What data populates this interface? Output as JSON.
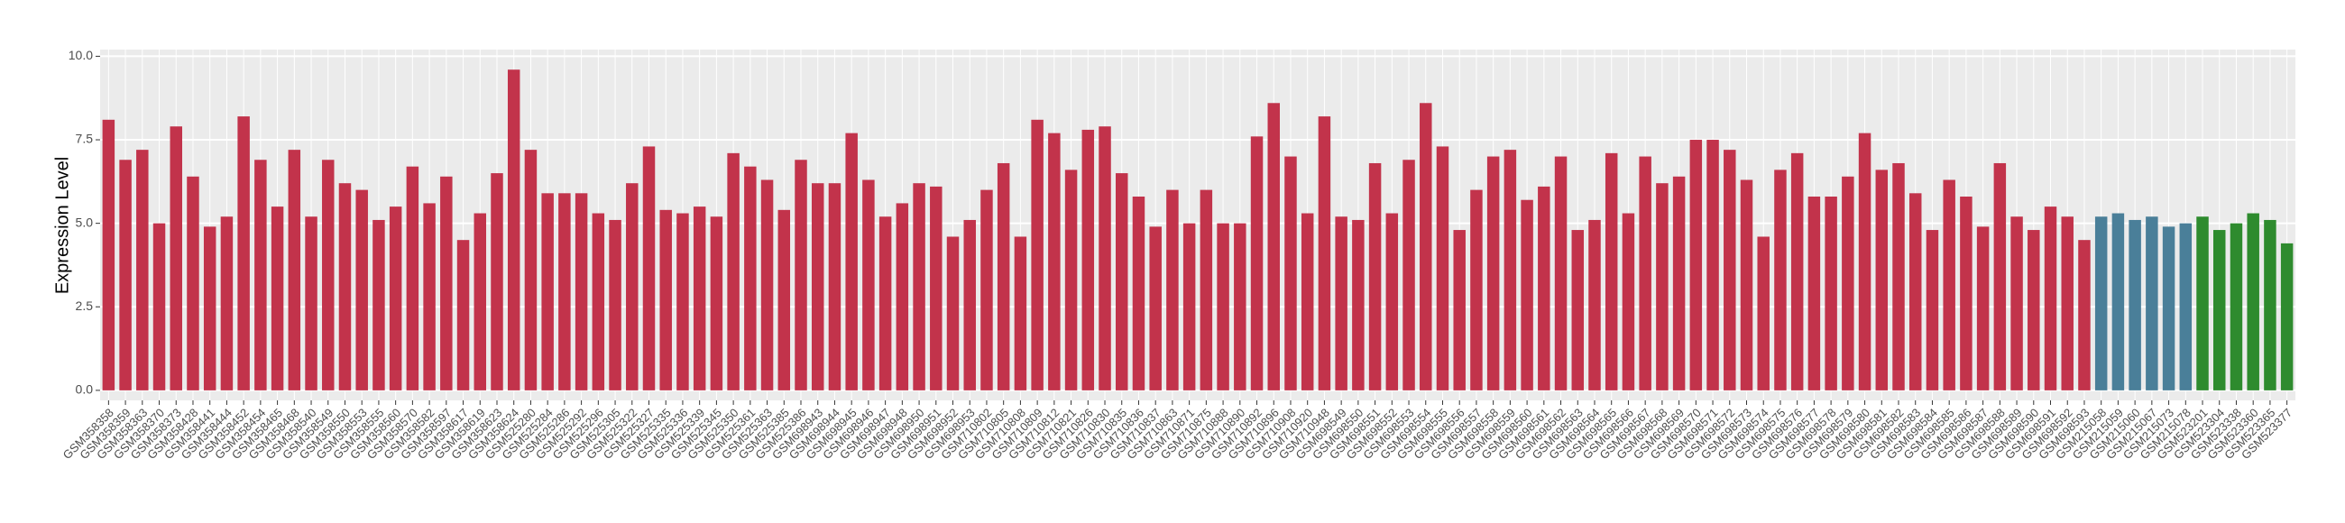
{
  "chart_data": {
    "type": "bar",
    "y_label": "Expression Level",
    "categories": [
      "GSM358358",
      "GSM358359",
      "GSM358363",
      "GSM358370",
      "GSM358373",
      "GSM358428",
      "GSM358441",
      "GSM358444",
      "GSM358452",
      "GSM358454",
      "GSM358465",
      "GSM358468",
      "GSM358540",
      "GSM358549",
      "GSM358550",
      "GSM358553",
      "GSM358555",
      "GSM358560",
      "GSM358570",
      "GSM358582",
      "GSM358597",
      "GSM358617",
      "GSM358619",
      "GSM358623",
      "GSM358624",
      "GSM525280",
      "GSM525284",
      "GSM525286",
      "GSM525292",
      "GSM525296",
      "GSM525305",
      "GSM525322",
      "GSM525327",
      "GSM525335",
      "GSM525336",
      "GSM525339",
      "GSM525345",
      "GSM525350",
      "GSM525361",
      "GSM525363",
      "GSM525385",
      "GSM525386",
      "GSM698943",
      "GSM698944",
      "GSM698945",
      "GSM698946",
      "GSM698947",
      "GSM698948",
      "GSM698950",
      "GSM698951",
      "GSM698952",
      "GSM698953",
      "GSM710802",
      "GSM710805",
      "GSM710808",
      "GSM710809",
      "GSM710812",
      "GSM710821",
      "GSM710826",
      "GSM710830",
      "GSM710835",
      "GSM710836",
      "GSM710837",
      "GSM710863",
      "GSM710871",
      "GSM710875",
      "GSM710888",
      "GSM710890",
      "GSM710892",
      "GSM710896",
      "GSM710908",
      "GSM710920",
      "GSM710948",
      "GSM698549",
      "GSM698550",
      "GSM698551",
      "GSM698552",
      "GSM698553",
      "GSM698554",
      "GSM698555",
      "GSM698556",
      "GSM698557",
      "GSM698558",
      "GSM698559",
      "GSM698560",
      "GSM698561",
      "GSM698562",
      "GSM698563",
      "GSM698564",
      "GSM698565",
      "GSM698566",
      "GSM698567",
      "GSM698568",
      "GSM698569",
      "GSM698570",
      "GSM698571",
      "GSM698572",
      "GSM698573",
      "GSM698574",
      "GSM698575",
      "GSM698576",
      "GSM698577",
      "GSM698578",
      "GSM698579",
      "GSM698580",
      "GSM698581",
      "GSM698582",
      "GSM698583",
      "GSM698584",
      "GSM698585",
      "GSM698586",
      "GSM698587",
      "GSM698588",
      "GSM698589",
      "GSM698590",
      "GSM698591",
      "GSM698592",
      "GSM698593",
      "GSM215058",
      "GSM215059",
      "GSM215060",
      "GSM215067",
      "GSM215073",
      "GSM215078",
      "GSM523201",
      "GSM523304",
      "GSM523338",
      "GSM523360",
      "GSM523365",
      "GSM523377"
    ],
    "values": [
      8.1,
      6.9,
      7.2,
      5.0,
      7.9,
      6.4,
      4.9,
      5.2,
      8.2,
      6.9,
      5.5,
      7.2,
      5.2,
      6.9,
      6.2,
      6.0,
      5.1,
      5.5,
      6.7,
      5.6,
      6.4,
      4.5,
      5.3,
      6.5,
      9.6,
      7.2,
      5.9,
      5.9,
      5.9,
      5.3,
      5.1,
      6.2,
      7.3,
      5.4,
      5.3,
      5.5,
      5.2,
      7.1,
      6.7,
      6.3,
      5.4,
      6.9,
      6.2,
      6.2,
      7.7,
      6.3,
      5.2,
      5.6,
      6.2,
      6.1,
      4.6,
      5.1,
      6.0,
      6.8,
      4.6,
      8.1,
      7.7,
      6.6,
      7.8,
      7.9,
      6.5,
      5.8,
      4.9,
      6.0,
      5.0,
      6.0,
      5.0,
      5.0,
      7.6,
      8.6,
      7.0,
      5.3,
      8.2,
      5.2,
      5.1,
      6.8,
      5.3,
      6.9,
      8.6,
      7.3,
      4.8,
      6.0,
      7.0,
      7.2,
      5.7,
      6.1,
      7.0,
      4.8,
      5.1,
      7.1,
      5.3,
      7.0,
      6.2,
      6.4,
      7.5,
      7.5,
      7.2,
      6.3,
      4.6,
      6.6,
      7.1,
      5.8,
      5.8,
      6.4,
      7.7,
      6.6,
      6.8,
      5.9,
      4.8,
      6.3,
      5.8,
      4.9,
      6.8,
      5.2,
      4.8,
      5.5,
      5.2,
      4.5,
      5.2,
      5.3,
      5.1,
      5.2,
      4.9,
      5.0,
      5.2,
      4.8,
      5.0,
      5.3,
      5.1,
      4.4
    ],
    "colors": [
      "#c2334b",
      "#c2334b",
      "#c2334b",
      "#c2334b",
      "#c2334b",
      "#c2334b",
      "#c2334b",
      "#c2334b",
      "#c2334b",
      "#c2334b",
      "#c2334b",
      "#c2334b",
      "#c2334b",
      "#c2334b",
      "#c2334b",
      "#c2334b",
      "#c2334b",
      "#c2334b",
      "#c2334b",
      "#c2334b",
      "#c2334b",
      "#c2334b",
      "#c2334b",
      "#c2334b",
      "#c2334b",
      "#c2334b",
      "#c2334b",
      "#c2334b",
      "#c2334b",
      "#c2334b",
      "#c2334b",
      "#c2334b",
      "#c2334b",
      "#c2334b",
      "#c2334b",
      "#c2334b",
      "#c2334b",
      "#c2334b",
      "#c2334b",
      "#c2334b",
      "#c2334b",
      "#c2334b",
      "#c2334b",
      "#c2334b",
      "#c2334b",
      "#c2334b",
      "#c2334b",
      "#c2334b",
      "#c2334b",
      "#c2334b",
      "#c2334b",
      "#c2334b",
      "#c2334b",
      "#c2334b",
      "#c2334b",
      "#c2334b",
      "#c2334b",
      "#c2334b",
      "#c2334b",
      "#c2334b",
      "#c2334b",
      "#c2334b",
      "#c2334b",
      "#c2334b",
      "#c2334b",
      "#c2334b",
      "#c2334b",
      "#c2334b",
      "#c2334b",
      "#c2334b",
      "#c2334b",
      "#c2334b",
      "#c2334b",
      "#c2334b",
      "#c2334b",
      "#c2334b",
      "#c2334b",
      "#c2334b",
      "#c2334b",
      "#c2334b",
      "#c2334b",
      "#c2334b",
      "#c2334b",
      "#c2334b",
      "#c2334b",
      "#c2334b",
      "#c2334b",
      "#c2334b",
      "#c2334b",
      "#c2334b",
      "#c2334b",
      "#c2334b",
      "#c2334b",
      "#c2334b",
      "#c2334b",
      "#c2334b",
      "#c2334b",
      "#c2334b",
      "#c2334b",
      "#c2334b",
      "#c2334b",
      "#c2334b",
      "#c2334b",
      "#c2334b",
      "#c2334b",
      "#c2334b",
      "#c2334b",
      "#c2334b",
      "#c2334b",
      "#c2334b",
      "#c2334b",
      "#c2334b",
      "#c2334b",
      "#c2334b",
      "#c2334b",
      "#c2334b",
      "#c2334b",
      "#c2334b",
      "#4a7f99",
      "#4a7f99",
      "#4a7f99",
      "#4a7f99",
      "#4a7f99",
      "#4a7f99",
      "#2e8b2e",
      "#2e8b2e",
      "#2e8b2e",
      "#2e8b2e",
      "#2e8b2e",
      "#2e8b2e"
    ],
    "ylim": [
      -0.3,
      10.2
    ],
    "yticks": [
      {
        "value": 0,
        "label": "0.0"
      },
      {
        "value": 2.5,
        "label": "2.5"
      },
      {
        "value": 5,
        "label": "5.0"
      },
      {
        "value": 7.5,
        "label": "7.5"
      },
      {
        "value": 10,
        "label": "10.0"
      }
    ],
    "grid": true
  }
}
